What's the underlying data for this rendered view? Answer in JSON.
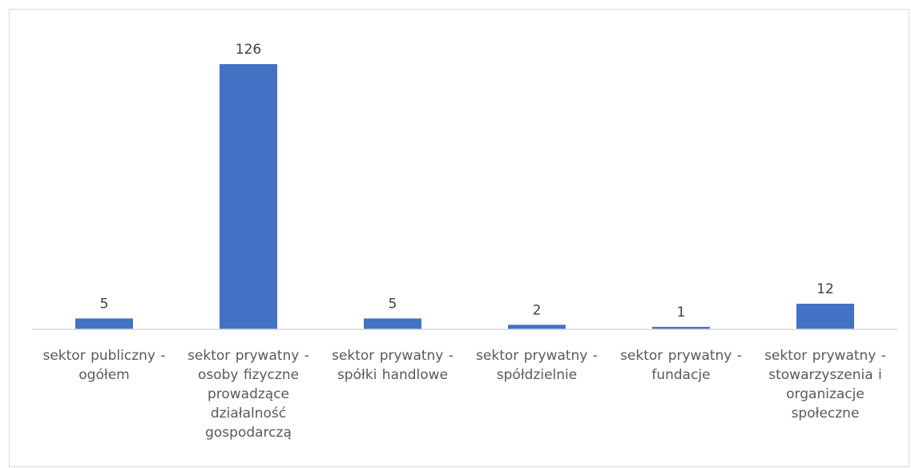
{
  "chart_data": {
    "type": "bar",
    "categories": [
      "sektor publiczny - ogółem",
      "sektor prywatny - osoby fizyczne prowadzące działalność gospodarczą",
      "sektor prywatny - spółki handlowe",
      "sektor prywatny - spółdzielnie",
      "sektor prywatny - fundacje",
      "sektor prywatny - stowarzyszenia i organizacje społeczne"
    ],
    "values": [
      5,
      126,
      5,
      2,
      1,
      12
    ],
    "data_labels": [
      "5",
      "126",
      "5",
      "2",
      "1",
      "12"
    ],
    "title": "",
    "xlabel": "",
    "ylabel": "",
    "ylim": [
      0,
      130
    ],
    "grid": false,
    "legend": "none",
    "bar_color": "#4472C4",
    "axis_color": "#d9d9d9"
  }
}
